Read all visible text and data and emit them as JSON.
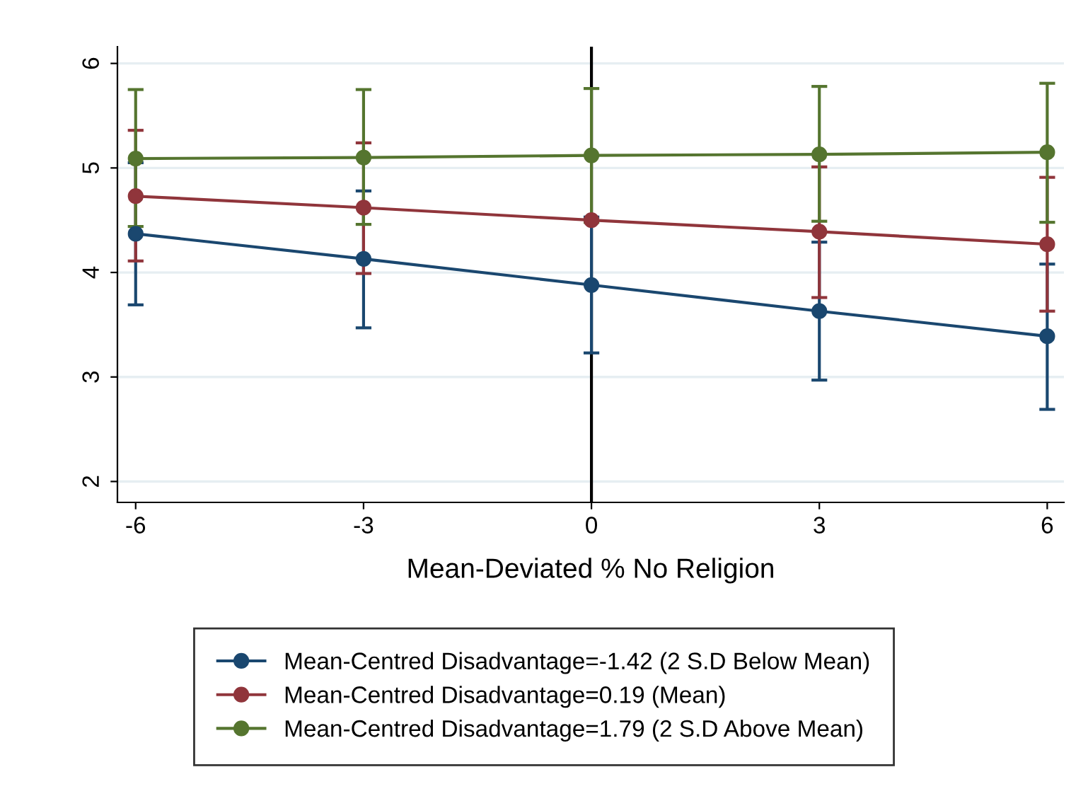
{
  "chart_data": {
    "type": "line",
    "xlabel": "Mean-Deviated % No Religion",
    "x": [
      -6,
      -3,
      0,
      3,
      6
    ],
    "series": [
      {
        "name": "Mean-Centred Disadvantage=-1.42 (2 S.D Below Mean)",
        "color": "#1a476f",
        "values": [
          4.37,
          4.13,
          3.88,
          3.63,
          3.39
        ],
        "errors": [
          [
            3.69,
            5.05
          ],
          [
            3.47,
            4.78
          ],
          [
            3.23,
            4.53
          ],
          [
            2.97,
            4.29
          ],
          [
            2.69,
            4.08
          ]
        ]
      },
      {
        "name": "Mean-Centred Disadvantage=0.19 (Mean)",
        "color": "#90353b",
        "values": [
          4.73,
          4.62,
          4.5,
          4.39,
          4.27
        ],
        "errors": [
          [
            4.11,
            5.36
          ],
          [
            3.99,
            5.24
          ],
          null,
          [
            3.76,
            5.01
          ],
          [
            3.63,
            4.91
          ]
        ]
      },
      {
        "name": "Mean-Centred Disadvantage=1.79 (2 S.D Above Mean)",
        "color": "#55752f",
        "values": [
          5.09,
          5.1,
          5.12,
          5.13,
          5.15
        ],
        "errors": [
          [
            4.44,
            5.75
          ],
          [
            4.46,
            5.75
          ],
          [
            4.48,
            5.76
          ],
          [
            4.49,
            5.78
          ],
          [
            4.48,
            5.81
          ]
        ]
      }
    ],
    "xlim": [
      -6.24,
      6.22
    ],
    "ylim": [
      1.8,
      6.16
    ],
    "xticks": [
      -6,
      -3,
      0,
      3,
      6
    ],
    "yticks": [
      2,
      3,
      4,
      5,
      6
    ],
    "ref_lines": [
      {
        "axis": "x",
        "value": 0,
        "color": "#000000"
      }
    ],
    "grid": "y",
    "legend": "bottom",
    "marker": "circle",
    "line_style": "solid"
  }
}
